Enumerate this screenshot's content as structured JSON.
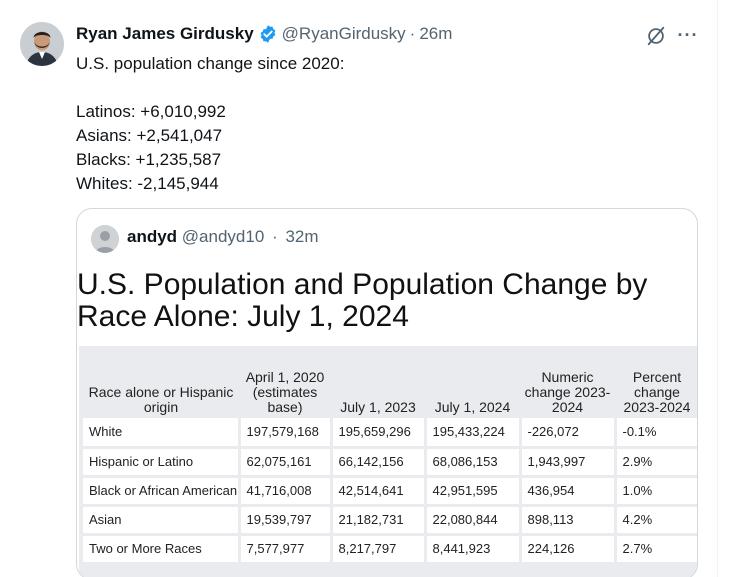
{
  "tweet": {
    "author_name": "Ryan James Girdusky",
    "handle": "@RyanGirdusky",
    "separator": "·",
    "time": "26m",
    "lines": [
      "U.S. population change since 2020:",
      "",
      "Latinos: +6,010,992",
      "Asians: +2,541,047",
      "Blacks: +1,235,587",
      "Whites: -2,145,944"
    ],
    "more_label": "···"
  },
  "quote": {
    "author_name": "andyd",
    "handle": "@andyd10",
    "separator": "·",
    "time": "32m",
    "image_title_lines": [
      "U.S. Population and Population Change by",
      "Race Alone: July 1, 2024"
    ],
    "table": {
      "headers": [
        "Race alone or Hispanic origin",
        "April 1, 2020 (estimates base)",
        "July 1, 2023",
        "July 1, 2024",
        "Numeric change 2023-2024",
        "Percent change 2023-2024"
      ],
      "rows": [
        [
          "White",
          "197,579,168",
          "195,659,296",
          "195,433,224",
          "-226,072",
          "-0.1%"
        ],
        [
          "Hispanic or Latino",
          "62,075,161",
          "66,142,156",
          "68,086,153",
          "1,943,997",
          "2.9%"
        ],
        [
          "Black or African American",
          "41,716,008",
          "42,514,641",
          "42,951,595",
          "436,954",
          "1.0%"
        ],
        [
          "Asian",
          "19,539,797",
          "21,182,731",
          "22,080,844",
          "898,113",
          "4.2%"
        ],
        [
          "Two or More Races",
          "7,577,977",
          "8,217,797",
          "8,441,923",
          "224,126",
          "2.7%"
        ]
      ]
    }
  },
  "colors": {
    "verified": "#1d9bf0",
    "secondary_text": "#536471",
    "border": "#cfd9de"
  },
  "icons": [
    "verified-badge-icon",
    "grok-icon",
    "more-icon"
  ]
}
